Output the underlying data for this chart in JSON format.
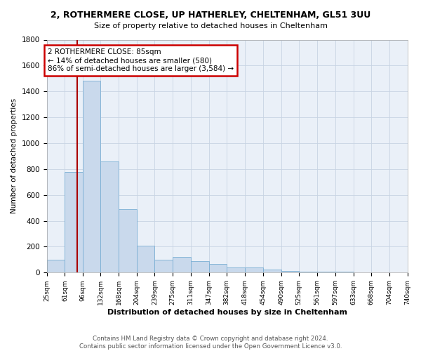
{
  "title": "2, ROTHERMERE CLOSE, UP HATHERLEY, CHELTENHAM, GL51 3UU",
  "subtitle": "Size of property relative to detached houses in Cheltenham",
  "xlabel": "Distribution of detached houses by size in Cheltenham",
  "ylabel": "Number of detached properties",
  "bar_edges": [
    25,
    61,
    96,
    132,
    168,
    204,
    239,
    275,
    311,
    347,
    382,
    418,
    454,
    490,
    525,
    561,
    597,
    633,
    668,
    704,
    740
  ],
  "bar_heights": [
    100,
    780,
    1480,
    860,
    490,
    210,
    100,
    120,
    90,
    65,
    40,
    40,
    25,
    15,
    8,
    6,
    5,
    3,
    2,
    2
  ],
  "bar_color": "#c9d9ec",
  "bar_edge_color": "#7aafd4",
  "grid_color": "#c8d4e3",
  "background_color": "#eaf0f8",
  "property_size": 85,
  "property_line_color": "#aa0000",
  "annotation_line1": "2 ROTHERMERE CLOSE: 85sqm",
  "annotation_line2": "← 14% of detached houses are smaller (580)",
  "annotation_line3": "86% of semi-detached houses are larger (3,584) →",
  "annotation_box_color": "#ffffff",
  "annotation_border_color": "#cc0000",
  "ylim": [
    0,
    1800
  ],
  "yticks": [
    0,
    200,
    400,
    600,
    800,
    1000,
    1200,
    1400,
    1600,
    1800
  ],
  "footer_line1": "Contains HM Land Registry data © Crown copyright and database right 2024.",
  "footer_line2": "Contains public sector information licensed under the Open Government Licence v3.0."
}
